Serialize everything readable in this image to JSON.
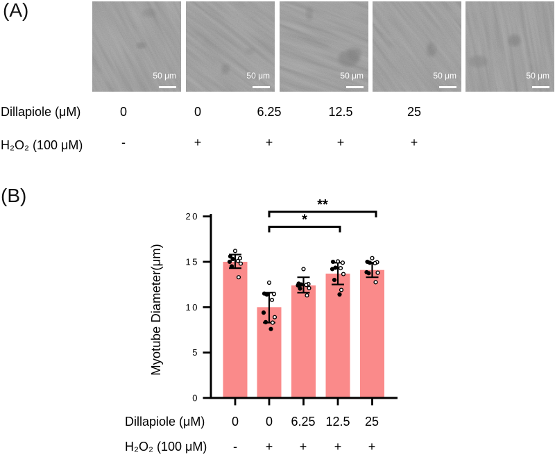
{
  "colors": {
    "bar_fill": "#FA8A8A",
    "axis": "#000000",
    "text": "#111111",
    "micrograph_base": "#7B7B7B",
    "scale_bar": "#FFFFFF"
  },
  "panel_a": {
    "label": "(A)",
    "micrographs": [
      {
        "scale_bar_label": "50 μm"
      },
      {
        "scale_bar_label": "50 μm"
      },
      {
        "scale_bar_label": "50 μm"
      },
      {
        "scale_bar_label": "50 μm"
      },
      {
        "scale_bar_label": "50 μm"
      }
    ],
    "dillapiole_row": {
      "header": "Dillapiole (μM)",
      "values": [
        "0",
        "0",
        "6.25",
        "12.5",
        "25"
      ]
    },
    "h2o2_row": {
      "header": "H₂O₂ (100 μM)",
      "values": [
        "-",
        "+",
        "+",
        "+",
        "+"
      ]
    }
  },
  "panel_b": {
    "label": "(B)",
    "dillapiole_row": {
      "header": "Dillapiole (μM)",
      "values": [
        "0",
        "0",
        "6.25",
        "12.5",
        "25"
      ]
    },
    "h2o2_row": {
      "header": "H₂O₂ (100 μM)",
      "values": [
        "-",
        "+",
        "+",
        "+",
        "+"
      ]
    }
  },
  "chart_data": {
    "type": "bar",
    "title": "",
    "xlabel": "",
    "ylabel": "Myotube Diameter(μm)",
    "ylim": [
      0,
      20
    ],
    "yticks": [
      0,
      5,
      10,
      15,
      20
    ],
    "grid": false,
    "legend": false,
    "bar_color": "#FA8A8A",
    "categories": [
      "0",
      "0",
      "6.25",
      "12.5",
      "25"
    ],
    "category_rows": [
      {
        "label": "Dillapiole (μM)",
        "values": [
          "0",
          "0",
          "6.25",
          "12.5",
          "25"
        ]
      },
      {
        "label": "H₂O₂ (100 μM)",
        "values": [
          "-",
          "+",
          "+",
          "+",
          "+"
        ]
      }
    ],
    "values": [
      15.0,
      10.0,
      12.4,
      13.7,
      14.1
    ],
    "error_low": [
      14.3,
      8.3,
      11.6,
      12.5,
      13.3
    ],
    "error_high": [
      15.8,
      11.6,
      13.3,
      14.9,
      14.9
    ],
    "scatter_points": [
      [
        16.2,
        15.6,
        15.4,
        15.3,
        15.1,
        15.0,
        14.8,
        14.5,
        13.3
      ],
      [
        12.7,
        11.5,
        11.45,
        11.4,
        10.8,
        9.4,
        8.9,
        8.35,
        8.3,
        7.6
      ],
      [
        14.2,
        12.6,
        12.55,
        12.5,
        12.45,
        12.4,
        12.1,
        12.05,
        11.3
      ],
      [
        15.05,
        15.0,
        14.9,
        14.35,
        14.3,
        14.2,
        13.65,
        13.0,
        11.9,
        11.4
      ],
      [
        15.4,
        15.0,
        14.95,
        14.9,
        14.85,
        13.85,
        13.8,
        13.75,
        12.75
      ]
    ],
    "significance": [
      {
        "from_index": 1,
        "to_index": 3,
        "label": "*"
      },
      {
        "from_index": 1,
        "to_index": 4,
        "label": "**"
      }
    ]
  }
}
